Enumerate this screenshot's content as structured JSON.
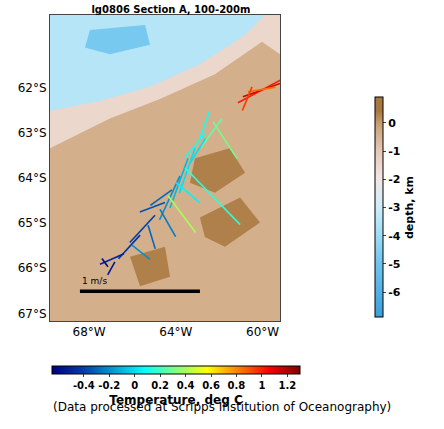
{
  "chart_data": {
    "type": "vector_map",
    "title": "lg0806 Section A, 100-200m",
    "caption": "(Data processed at Scripps Institution of Oceanography)",
    "xlim": [
      -69.8,
      -59.2
    ],
    "ylim": [
      -67.17,
      -60.4
    ],
    "xticks": [
      {
        "value": -68,
        "label": "68°W"
      },
      {
        "value": -64,
        "label": "64°W"
      },
      {
        "value": -60,
        "label": "60°W"
      }
    ],
    "yticks": [
      {
        "value": -62,
        "label": "62°S"
      },
      {
        "value": -63,
        "label": "63°S"
      },
      {
        "value": -64,
        "label": "64°S"
      },
      {
        "value": -65,
        "label": "65°S"
      },
      {
        "value": -66,
        "label": "66°S"
      },
      {
        "value": -67,
        "label": "67°S"
      }
    ],
    "grid": true,
    "depth_colorbar": {
      "title": "depth, km",
      "range": [
        -6.9,
        0.9
      ],
      "ticks": [
        0,
        -1,
        -2,
        -3,
        -4,
        -5,
        -6
      ]
    },
    "temperature_colorbar": {
      "title": "Temperature, deg C",
      "range": [
        -0.65,
        1.3
      ],
      "ticks": [
        -0.4,
        -0.2,
        0,
        0.2,
        0.4,
        0.6,
        0.8,
        1,
        1.2
      ]
    },
    "bathymetry": [
      {
        "depth": -0.4,
        "lon": [
          -69.8,
          -59.2,
          -59.2,
          -69.8
        ],
        "lat": [
          -60.4,
          -60.4,
          -67.17,
          -67.17
        ]
      },
      {
        "depth": -1.5,
        "lon": [
          -69.8,
          -59.2,
          -59.2,
          -60.03,
          -62.2,
          -64.73,
          -67.04,
          -68.88,
          -69.8
        ],
        "lat": [
          -60.4,
          -60.4,
          -61.27,
          -60.99,
          -61.71,
          -62.26,
          -62.69,
          -63.13,
          -63.35
        ]
      },
      {
        "depth": -3.5,
        "lon": [
          -69.8,
          -59.89,
          -60.81,
          -62.89,
          -65.19,
          -67.5,
          -69.8
        ],
        "lat": [
          -60.4,
          -60.4,
          -60.84,
          -61.49,
          -61.99,
          -62.3,
          -62.52
        ]
      },
      {
        "depth": -4.8,
        "lon": [
          -67.96,
          -65.42,
          -65.19,
          -67.04,
          -68.19
        ],
        "lat": [
          -60.73,
          -60.62,
          -61.06,
          -61.27,
          -61.12
        ]
      },
      {
        "depth": 0.3,
        "lon": [
          -63.12,
          -61.51,
          -60.81,
          -62.2,
          -63.35
        ],
        "lat": [
          -63.57,
          -63.35,
          -63.89,
          -64.33,
          -64.11
        ]
      },
      {
        "depth": 0.3,
        "lon": [
          -62.89,
          -61.04,
          -60.12,
          -61.74,
          -62.66
        ],
        "lat": [
          -64.88,
          -64.44,
          -64.99,
          -65.53,
          -65.31
        ]
      },
      {
        "depth": 0.3,
        "lon": [
          -66.11,
          -64.5,
          -64.27,
          -65.65
        ],
        "lat": [
          -65.75,
          -65.53,
          -66.19,
          -66.4
        ]
      }
    ],
    "vectors": [
      {
        "lon": -61.14,
        "lat": -62.34,
        "u": 0.43,
        "v": 0.23,
        "temperature": 1.0
      },
      {
        "lon": -60.91,
        "lat": -62.21,
        "u": 0.33,
        "v": 0.12,
        "temperature": 1.15
      },
      {
        "lon": -60.68,
        "lat": -62.1,
        "u": 0.23,
        "v": 0.04,
        "temperature": 0.85
      },
      {
        "lon": -60.49,
        "lat": -61.99,
        "u": -0.08,
        "v": -0.2,
        "temperature": 0.95
      },
      {
        "lon": -62.29,
        "lat": -62.76,
        "u": 0.2,
        "v": -0.31,
        "temperature": 0.3
      },
      {
        "lon": -61.87,
        "lat": -62.69,
        "u": -0.18,
        "v": -0.25,
        "temperature": 0.25
      },
      {
        "lon": -62.66,
        "lat": -63.02,
        "u": -0.17,
        "v": -0.21,
        "temperature": 0.1
      },
      {
        "lon": -63.12,
        "lat": -63.35,
        "u": -0.13,
        "v": -0.38,
        "temperature": 0.0
      },
      {
        "lon": -63.44,
        "lat": -63.57,
        "u": -0.15,
        "v": -0.42,
        "temperature": -0.1
      },
      {
        "lon": -63.58,
        "lat": -63.78,
        "u": 0.46,
        "v": -0.48,
        "temperature": 0.15
      },
      {
        "lon": -63.81,
        "lat": -63.96,
        "u": -0.17,
        "v": -0.37,
        "temperature": -0.2
      },
      {
        "lon": -63.99,
        "lat": -64.11,
        "u": 0.2,
        "v": -0.17,
        "temperature": 0.05
      },
      {
        "lon": -64.18,
        "lat": -64.27,
        "u": -0.18,
        "v": -0.13,
        "temperature": -0.3
      },
      {
        "lon": -64.36,
        "lat": -64.4,
        "u": 0.23,
        "v": -0.31,
        "temperature": 0.4
      },
      {
        "lon": -64.5,
        "lat": -64.55,
        "u": -0.21,
        "v": -0.08,
        "temperature": -0.35
      },
      {
        "lon": -64.73,
        "lat": -64.7,
        "u": 0.13,
        "v": -0.23,
        "temperature": -0.25
      },
      {
        "lon": -64.96,
        "lat": -64.83,
        "u": -0.21,
        "v": -0.23,
        "temperature": -0.4
      },
      {
        "lon": -65.28,
        "lat": -65.05,
        "u": 0.06,
        "v": -0.2,
        "temperature": -0.3
      },
      {
        "lon": -65.65,
        "lat": -65.27,
        "u": -0.18,
        "v": -0.2,
        "temperature": -0.45
      },
      {
        "lon": -66.02,
        "lat": -65.49,
        "u": 0.15,
        "v": -0.12,
        "temperature": -0.2
      },
      {
        "lon": -66.39,
        "lat": -65.68,
        "u": -0.2,
        "v": -0.09,
        "temperature": -0.5
      },
      {
        "lon": -66.81,
        "lat": -65.86,
        "u": -0.06,
        "v": -0.11,
        "temperature": -0.55
      },
      {
        "lon": -67.13,
        "lat": -65.97,
        "u": -0.05,
        "v": 0.07,
        "temperature": -0.6
      },
      {
        "lon": -62.89,
        "lat": -63.13,
        "u": 0.08,
        "v": 0.23,
        "temperature": 0.1
      },
      {
        "lon": -63.35,
        "lat": -63.68,
        "u": 0.13,
        "v": 0.21,
        "temperature": 0.0
      }
    ],
    "scale_bar": {
      "label": "1 m/s",
      "speed": 1,
      "lon_start": -68.42,
      "lon_end": -62.89,
      "lat": -66.51
    }
  }
}
